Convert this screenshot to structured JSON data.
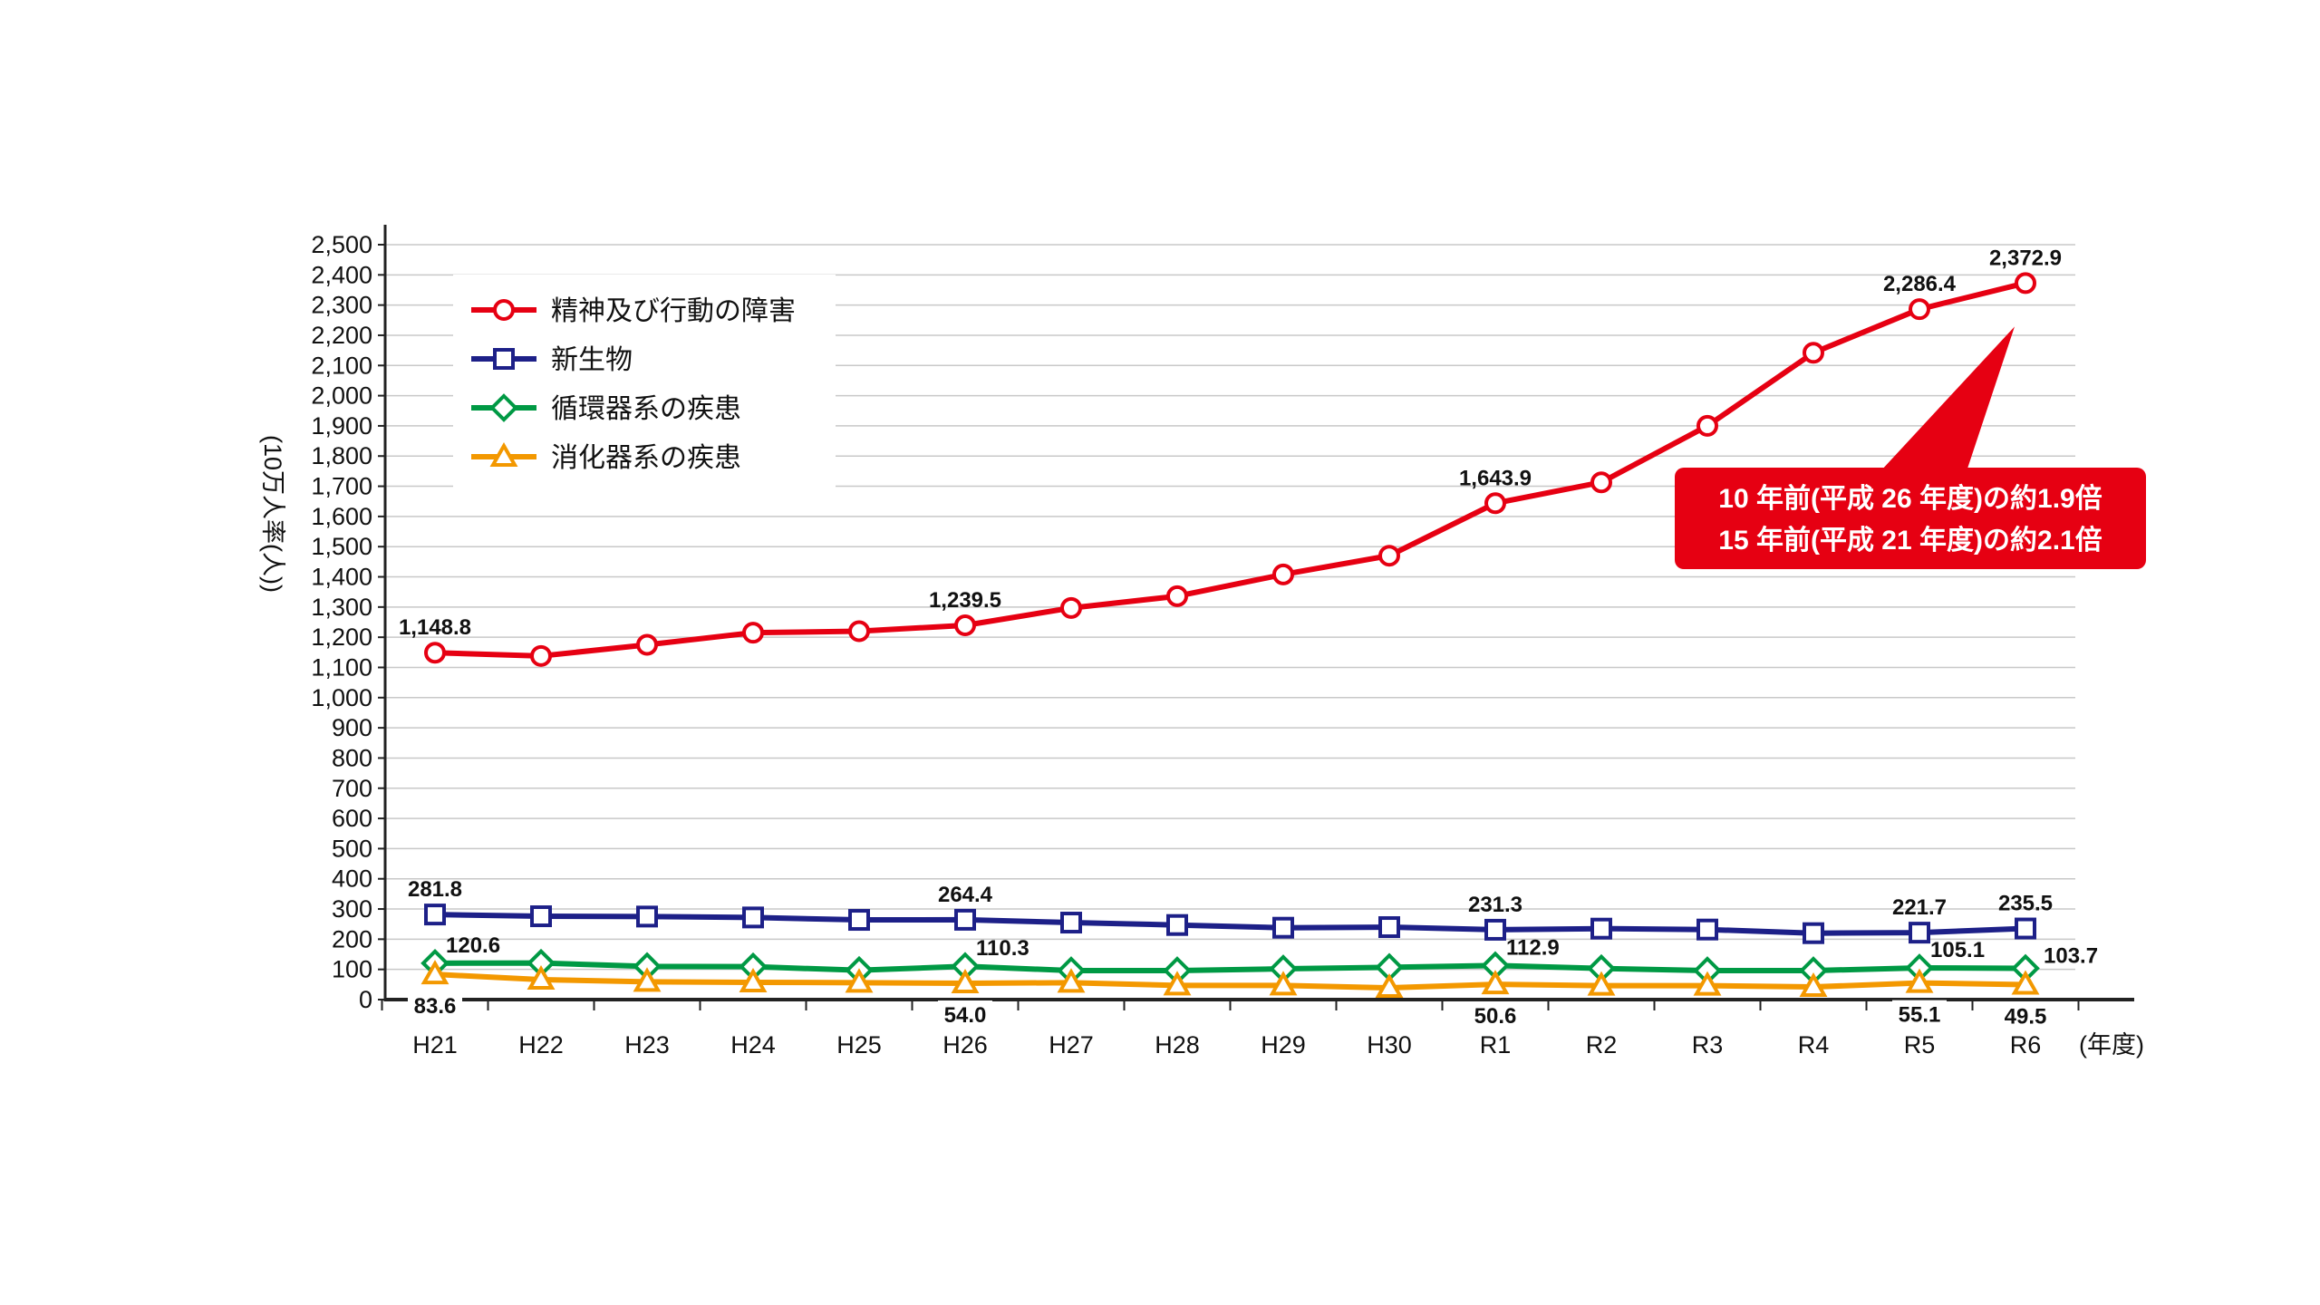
{
  "chart_data": {
    "type": "line",
    "categories": [
      "H21",
      "H22",
      "H23",
      "H24",
      "H25",
      "H26",
      "H27",
      "H28",
      "H29",
      "H30",
      "R1",
      "R2",
      "R3",
      "R4",
      "R5",
      "R6"
    ],
    "x_unit": "(年度)",
    "ylabel": "(10万人率(人))",
    "ylim": [
      0,
      2500
    ],
    "yticks": [
      0,
      100,
      200,
      300,
      400,
      500,
      600,
      700,
      800,
      900,
      1000,
      1100,
      1200,
      1300,
      1400,
      1500,
      1600,
      1700,
      1800,
      1900,
      2000,
      2100,
      2200,
      2300,
      2400,
      2500
    ],
    "ytick_labels": [
      "0",
      "100",
      "200",
      "300",
      "400",
      "500",
      "600",
      "700",
      "800",
      "900",
      "1,000",
      "1,100",
      "1,200",
      "1,300",
      "1,400",
      "1,500",
      "1,600",
      "1,700",
      "1,800",
      "1,900",
      "2,000",
      "2,100",
      "2,200",
      "2,300",
      "2,400",
      "2,500"
    ],
    "grid": "horizontal",
    "legend_position": "top-left",
    "series": [
      {
        "name": "精神及び行動の障害",
        "color": "#e60012",
        "marker": "circle",
        "values": [
          1148.8,
          1138,
          1175,
          1215,
          1220,
          1239.5,
          1297,
          1336,
          1408,
          1470,
          1643.9,
          1713,
          1900,
          2142,
          2286.4,
          2372.9
        ],
        "labels": [
          {
            "index": 0,
            "text": "1,148.8",
            "pos": "above"
          },
          {
            "index": 5,
            "text": "1,239.5",
            "pos": "above"
          },
          {
            "index": 10,
            "text": "1,643.9",
            "pos": "above"
          },
          {
            "index": 14,
            "text": "2,286.4",
            "pos": "above"
          },
          {
            "index": 15,
            "text": "2,372.9",
            "pos": "above"
          }
        ]
      },
      {
        "name": "新生物",
        "color": "#1d2088",
        "marker": "square",
        "values": [
          281.8,
          276,
          275,
          272,
          264,
          264.4,
          255,
          247,
          238,
          240,
          231.3,
          235,
          232,
          220,
          221.7,
          235.5
        ],
        "labels": [
          {
            "index": 0,
            "text": "281.8",
            "pos": "above"
          },
          {
            "index": 5,
            "text": "264.4",
            "pos": "above"
          },
          {
            "index": 10,
            "text": "231.3",
            "pos": "above"
          },
          {
            "index": 14,
            "text": "221.7",
            "pos": "above"
          },
          {
            "index": 15,
            "text": "235.5",
            "pos": "above"
          }
        ]
      },
      {
        "name": "循環器系の疾患",
        "color": "#009944",
        "marker": "diamond",
        "values": [
          120.6,
          121,
          110,
          109,
          97,
          110.3,
          96,
          96,
          102,
          107,
          112.9,
          103,
          96,
          96,
          105.1,
          103.7
        ],
        "labels": [
          {
            "index": 0,
            "text": "120.6",
            "pos": "above-right"
          },
          {
            "index": 5,
            "text": "110.3",
            "pos": "above-right"
          },
          {
            "index": 10,
            "text": "112.9",
            "pos": "above-right"
          },
          {
            "index": 14,
            "text": "105.1",
            "pos": "above-right"
          },
          {
            "index": 15,
            "text": "103.7",
            "pos": "right"
          }
        ]
      },
      {
        "name": "消化器系の疾患",
        "color": "#f39800",
        "marker": "triangle",
        "values": [
          83.6,
          66,
          59,
          57,
          56,
          54.0,
          56,
          47,
          47,
          39,
          50.6,
          46,
          46,
          42,
          55.1,
          49.5
        ],
        "labels": [
          {
            "index": 0,
            "text": "83.6",
            "pos": "below"
          },
          {
            "index": 5,
            "text": "54.0",
            "pos": "below"
          },
          {
            "index": 10,
            "text": "50.6",
            "pos": "below"
          },
          {
            "index": 14,
            "text": "55.1",
            "pos": "below"
          },
          {
            "index": 15,
            "text": "49.5",
            "pos": "below"
          }
        ]
      }
    ],
    "annotation": {
      "lines": [
        "10 年前(平成 26 年度)の約1.9倍",
        "15 年前(平成 21 年度)の約2.1倍"
      ],
      "color": "#e60012",
      "points_to_index": 15
    }
  }
}
